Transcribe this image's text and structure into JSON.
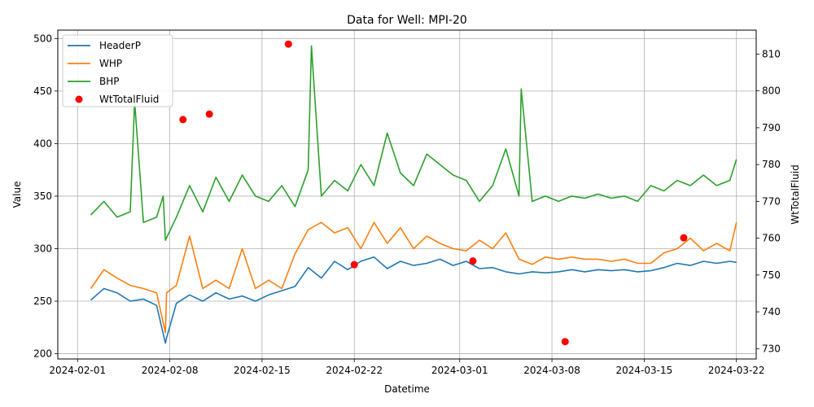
{
  "chart_data": {
    "type": "line",
    "title": "Data for Well: MPI-20",
    "xlabel": "Datetime",
    "ylabel": "Value",
    "y2label": "WtTotalFluid",
    "x_range": [
      "2024-01-30T12:00",
      "2024-03-23T12:00"
    ],
    "ylim": [
      195,
      508
    ],
    "y2lim": [
      727.2,
      816.5
    ],
    "x_ticks": [
      "2024-02-01",
      "2024-02-08",
      "2024-02-15",
      "2024-02-22",
      "2024-03-01",
      "2024-03-08",
      "2024-03-15",
      "2024-03-22"
    ],
    "y_ticks": [
      200,
      250,
      300,
      350,
      400,
      450,
      500
    ],
    "y2_ticks": [
      730,
      740,
      750,
      760,
      770,
      780,
      790,
      800,
      810
    ],
    "grid": true,
    "legend_position": "top-left",
    "colors": {
      "HeaderP": "#1f77b4",
      "WHP": "#ff7f0e",
      "BHP": "#2ca02c",
      "WtTotalFluid": "#ff0000"
    },
    "series": [
      {
        "name": "HeaderP",
        "x": [
          "2024-02-02T00:00",
          "2024-02-03T00:00",
          "2024-02-04T00:00",
          "2024-02-05T00:00",
          "2024-02-06T00:00",
          "2024-02-07T00:00",
          "2024-02-07T16:00",
          "2024-02-07T18:00",
          "2024-02-08T12:00",
          "2024-02-09T12:00",
          "2024-02-10T12:00",
          "2024-02-11T12:00",
          "2024-02-12T12:00",
          "2024-02-13T12:00",
          "2024-02-14T12:00",
          "2024-02-15T12:00",
          "2024-02-16T12:00",
          "2024-02-17T12:00",
          "2024-02-18T12:00",
          "2024-02-19T12:00",
          "2024-02-20T12:00",
          "2024-02-21T12:00",
          "2024-02-22T12:00",
          "2024-02-23T12:00",
          "2024-02-24T12:00",
          "2024-02-25T12:00",
          "2024-02-26T12:00",
          "2024-02-27T12:00",
          "2024-02-28T12:00",
          "2024-02-29T12:00",
          "2024-03-01T12:00",
          "2024-03-02T12:00",
          "2024-03-03T12:00",
          "2024-03-04T12:00",
          "2024-03-05T12:00",
          "2024-03-06T12:00",
          "2024-03-07T12:00",
          "2024-03-08T12:00",
          "2024-03-09T12:00",
          "2024-03-10T12:00",
          "2024-03-11T12:00",
          "2024-03-12T12:00",
          "2024-03-13T12:00",
          "2024-03-14T12:00",
          "2024-03-15T12:00",
          "2024-03-16T12:00",
          "2024-03-17T12:00",
          "2024-03-18T12:00",
          "2024-03-19T12:00",
          "2024-03-20T12:00",
          "2024-03-21T12:00",
          "2024-03-22T00:00"
        ],
        "values": [
          251,
          262,
          258,
          250,
          252,
          246,
          210,
          215,
          248,
          256,
          250,
          258,
          252,
          255,
          250,
          256,
          260,
          264,
          282,
          272,
          288,
          280,
          288,
          292,
          281,
          288,
          284,
          286,
          290,
          284,
          288,
          281,
          282,
          278,
          276,
          278,
          277,
          278,
          280,
          278,
          280,
          279,
          280,
          278,
          279,
          282,
          286,
          284,
          288,
          286,
          288,
          287
        ]
      },
      {
        "name": "WHP",
        "x": [
          "2024-02-02T00:00",
          "2024-02-03T00:00",
          "2024-02-04T00:00",
          "2024-02-05T00:00",
          "2024-02-06T00:00",
          "2024-02-07T00:00",
          "2024-02-07T16:00",
          "2024-02-07T18:00",
          "2024-02-08T12:00",
          "2024-02-09T12:00",
          "2024-02-10T12:00",
          "2024-02-11T12:00",
          "2024-02-12T12:00",
          "2024-02-13T12:00",
          "2024-02-14T12:00",
          "2024-02-15T12:00",
          "2024-02-16T12:00",
          "2024-02-17T12:00",
          "2024-02-18T12:00",
          "2024-02-19T12:00",
          "2024-02-20T12:00",
          "2024-02-21T12:00",
          "2024-02-22T12:00",
          "2024-02-23T12:00",
          "2024-02-24T12:00",
          "2024-02-25T12:00",
          "2024-02-26T12:00",
          "2024-02-27T12:00",
          "2024-02-28T12:00",
          "2024-02-29T12:00",
          "2024-03-01T12:00",
          "2024-03-02T12:00",
          "2024-03-03T12:00",
          "2024-03-04T12:00",
          "2024-03-05T12:00",
          "2024-03-06T12:00",
          "2024-03-07T12:00",
          "2024-03-08T12:00",
          "2024-03-09T12:00",
          "2024-03-10T12:00",
          "2024-03-11T12:00",
          "2024-03-12T12:00",
          "2024-03-13T12:00",
          "2024-03-14T12:00",
          "2024-03-15T12:00",
          "2024-03-16T12:00",
          "2024-03-17T12:00",
          "2024-03-18T12:00",
          "2024-03-19T12:00",
          "2024-03-20T12:00",
          "2024-03-21T12:00",
          "2024-03-22T00:00"
        ],
        "values": [
          262,
          280,
          272,
          265,
          262,
          258,
          220,
          258,
          265,
          312,
          262,
          270,
          262,
          300,
          262,
          270,
          262,
          295,
          318,
          325,
          315,
          320,
          300,
          325,
          305,
          320,
          300,
          312,
          305,
          300,
          298,
          308,
          300,
          315,
          290,
          285,
          292,
          290,
          292,
          290,
          290,
          288,
          290,
          286,
          286,
          296,
          300,
          310,
          298,
          305,
          298,
          325
        ]
      },
      {
        "name": "BHP",
        "x": [
          "2024-02-02T00:00",
          "2024-02-03T00:00",
          "2024-02-04T00:00",
          "2024-02-05T00:00",
          "2024-02-05T08:00",
          "2024-02-06T00:00",
          "2024-02-07T00:00",
          "2024-02-07T12:00",
          "2024-02-07T16:00",
          "2024-02-08T12:00",
          "2024-02-09T12:00",
          "2024-02-10T12:00",
          "2024-02-11T12:00",
          "2024-02-12T12:00",
          "2024-02-13T12:00",
          "2024-02-14T12:00",
          "2024-02-15T12:00",
          "2024-02-16T12:00",
          "2024-02-17T12:00",
          "2024-02-18T12:00",
          "2024-02-18T18:00",
          "2024-02-19T12:00",
          "2024-02-20T12:00",
          "2024-02-21T12:00",
          "2024-02-22T12:00",
          "2024-02-23T12:00",
          "2024-02-24T12:00",
          "2024-02-25T12:00",
          "2024-02-26T12:00",
          "2024-02-27T12:00",
          "2024-02-28T12:00",
          "2024-02-29T12:00",
          "2024-03-01T12:00",
          "2024-03-02T12:00",
          "2024-03-03T12:00",
          "2024-03-04T12:00",
          "2024-03-05T12:00",
          "2024-03-05T16:00",
          "2024-03-06T12:00",
          "2024-03-07T12:00",
          "2024-03-08T12:00",
          "2024-03-09T12:00",
          "2024-03-10T12:00",
          "2024-03-11T12:00",
          "2024-03-12T12:00",
          "2024-03-13T12:00",
          "2024-03-14T12:00",
          "2024-03-15T12:00",
          "2024-03-16T12:00",
          "2024-03-17T12:00",
          "2024-03-18T12:00",
          "2024-03-19T12:00",
          "2024-03-20T12:00",
          "2024-03-21T12:00",
          "2024-03-22T00:00"
        ],
        "values": [
          332,
          345,
          330,
          335,
          440,
          325,
          330,
          350,
          308,
          330,
          360,
          335,
          368,
          345,
          370,
          350,
          345,
          360,
          340,
          375,
          493,
          350,
          365,
          355,
          380,
          360,
          410,
          372,
          360,
          390,
          380,
          370,
          365,
          345,
          360,
          395,
          350,
          452,
          345,
          350,
          345,
          350,
          348,
          352,
          348,
          350,
          345,
          360,
          355,
          365,
          360,
          370,
          360,
          365,
          385
        ]
      },
      {
        "name": "WtTotalFluid",
        "axis": "right",
        "x": [
          "2024-02-09T00:00",
          "2024-02-11T00:00",
          "2024-02-17T00:00",
          "2024-02-22T00:00",
          "2024-03-02T00:00",
          "2024-03-09T00:00",
          "2024-03-18T00:00"
        ],
        "values": [
          792.2,
          793.7,
          812.7,
          752.8,
          753.8,
          731.9,
          760.1
        ]
      }
    ]
  }
}
